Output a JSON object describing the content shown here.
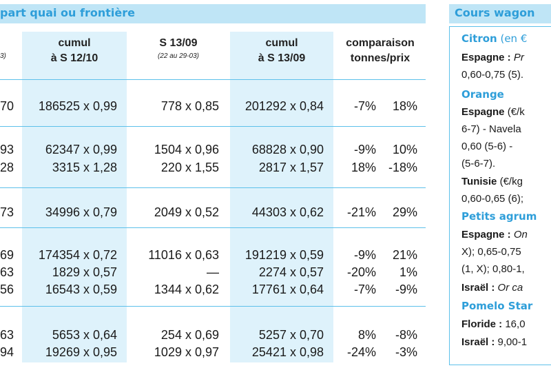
{
  "left": {
    "title": "part quai ou frontière",
    "columns": [
      {
        "label": "",
        "sub": "3)"
      },
      {
        "line1": "cumul",
        "line2": "à S 12/10"
      },
      {
        "line1": "S 13/09",
        "sub": "(22 au 29-03)"
      },
      {
        "line1": "cumul",
        "line2": "à S 13/09"
      },
      {
        "line1": "comparaison",
        "line2": "tonnes/prix"
      }
    ],
    "rows": [
      [
        "70",
        "186525 x 0,99",
        "778 x 0,85",
        "201292 x 0,84",
        "-7%",
        "18%"
      ],
      [
        "93",
        "62347 x 0,99",
        "1504 x 0,96",
        "68828 x 0,90",
        "-9%",
        "10%"
      ],
      [
        "28",
        "3315 x 1,28",
        "220 x 1,55",
        "2817 x 1,57",
        "18%",
        "-18%"
      ],
      [
        "73",
        "34996 x 0,79",
        "2049 x 0,52",
        "44303 x 0,62",
        "-21%",
        "29%"
      ],
      [
        "69",
        "174354 x 0,72",
        "11016 x 0,63",
        "191219 x 0,59",
        "-9%",
        "21%"
      ],
      [
        "63",
        "1829 x 0,57",
        "—",
        "2274 x 0,57",
        "-20%",
        "1%"
      ],
      [
        "56",
        "16543 x 0,59",
        "1344 x 0,62",
        "17761 x 0,64",
        "-7%",
        "-9%"
      ],
      [
        "63",
        "5653 x 0,64",
        "254 x 0,69",
        "5257 x 0,70",
        "8%",
        "-8%"
      ],
      [
        "94",
        "19269 x 0,95",
        "1029 x 0,97",
        "25421 x 0,98",
        "-24%",
        "-3%"
      ]
    ]
  },
  "right": {
    "title": "Cours wagon",
    "lines": [
      {
        "head": "Citron",
        "rest": " (en €"
      },
      {
        "country": "Espagne :",
        "rest": " Pr"
      },
      {
        "text": "0,60-0,75 (5)."
      },
      {
        "head": "Orange"
      },
      {
        "country": "Espagne",
        "rest": " (€/k"
      },
      {
        "text": "6-7) - Navela"
      },
      {
        "text": "0,60  (5-6)  -"
      },
      {
        "text": "(5-6-7)."
      },
      {
        "country": "Tunisie",
        "rest": " (€/kg"
      },
      {
        "text": "0,60-0,65 (6);"
      },
      {
        "head": "Petits agrum"
      },
      {
        "country": "Espagne :",
        "rest": "  On"
      },
      {
        "text": "X); 0,65-0,75"
      },
      {
        "text": "(1, X); 0,80-1,"
      },
      {
        "country": "Israël :",
        "rest": " Or ca"
      },
      {
        "head": "Pomelo Star"
      },
      {
        "country": "Floride :",
        "rest": " 16,0"
      },
      {
        "country": "Israël :",
        "rest": " 9,00-1"
      }
    ]
  }
}
